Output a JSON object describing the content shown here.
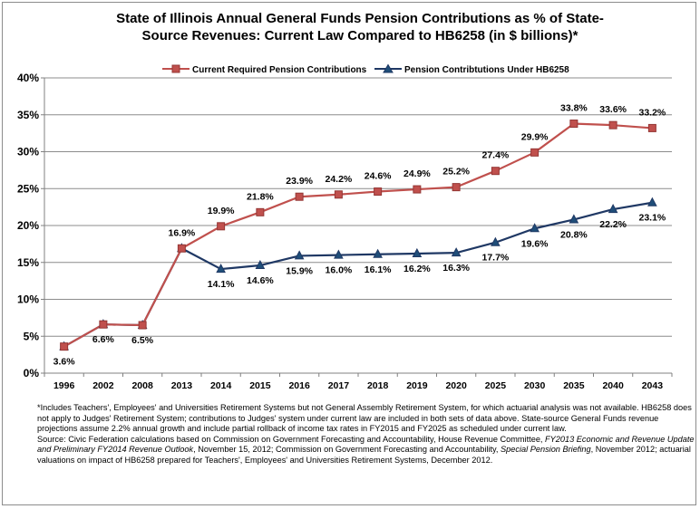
{
  "chart_data": {
    "type": "line",
    "title_lines": [
      "State of Illinois Annual General Funds Pension Contributions as % of State-",
      "Source Revenues: Current Law Compared to HB6258 (in $ billions)*"
    ],
    "categories": [
      "1996",
      "2002",
      "2008",
      "2013",
      "2014",
      "2015",
      "2016",
      "2017",
      "2018",
      "2019",
      "2020",
      "2025",
      "2030",
      "2035",
      "2040",
      "2043"
    ],
    "ylim": [
      0,
      40
    ],
    "yticks": [
      "0%",
      "5%",
      "10%",
      "15%",
      "20%",
      "25%",
      "30%",
      "35%",
      "40%"
    ],
    "ytick_values": [
      0,
      5,
      10,
      15,
      20,
      25,
      30,
      35,
      40
    ],
    "grid": true,
    "legend_position": "top",
    "series": [
      {
        "name": "Current Required Pension Contributions",
        "color": "#c0504d",
        "marker_fill": "#c0504d",
        "marker": "square",
        "values": [
          3.6,
          6.6,
          6.5,
          16.9,
          19.9,
          21.8,
          23.9,
          24.2,
          24.6,
          24.9,
          25.2,
          27.4,
          29.9,
          33.8,
          33.6,
          33.2
        ],
        "labels": [
          "",
          "",
          "",
          "16.9%",
          "19.9%",
          "21.8%",
          "23.9%",
          "24.2%",
          "24.6%",
          "24.9%",
          "25.2%",
          "27.4%",
          "29.9%",
          "33.8%",
          "33.6%",
          "33.2%"
        ]
      },
      {
        "name": "Pension Contribtutions Under HB6258",
        "color": "#1f3864",
        "marker_fill": "#1f4e79",
        "marker": "triangle",
        "values": [
          3.6,
          6.6,
          6.5,
          16.9,
          14.1,
          14.6,
          15.9,
          16.0,
          16.1,
          16.2,
          16.3,
          17.7,
          19.6,
          20.8,
          22.2,
          23.1
        ],
        "labels": [
          "3.6%",
          "6.6%",
          "6.5%",
          "",
          "14.1%",
          "14.6%",
          "15.9%",
          "16.0%",
          "16.1%",
          "16.2%",
          "16.3%",
          "17.7%",
          "19.6%",
          "20.8%",
          "22.2%",
          "23.1%"
        ]
      }
    ]
  },
  "notes": {
    "p1": "*Includes Teachers', Employees' and Universities Retirement Systems but not General Assembly Retirement System, for which actuarial analysis was not available. HB6258 does not apply to Judges' Retirement System; contributions to Judges' system under current law are included in both sets of data above. State-source General Funds revenue projections assume 2.2% annual growth and include partial rollback of income tax rates in FY2015 and FY2025 as scheduled under current law.",
    "p2_a": "Source: Civic Federation calculations based on Commission on Government Forecasting and Accountability, House Revenue Committee, ",
    "p2_b": "FY2013 Economic and Revenue Update and Preliminary FY2014 Revenue Outlook",
    "p2_c": ", November 15, 2012; Commission on Government Forecasting and Accountability, ",
    "p2_d": "Special Pension Briefing",
    "p2_e": ", November 2012; actuarial valuations on impact of HB6258 prepared for Teachers', Employees' and Universities Retirement Systems, December 2012."
  }
}
